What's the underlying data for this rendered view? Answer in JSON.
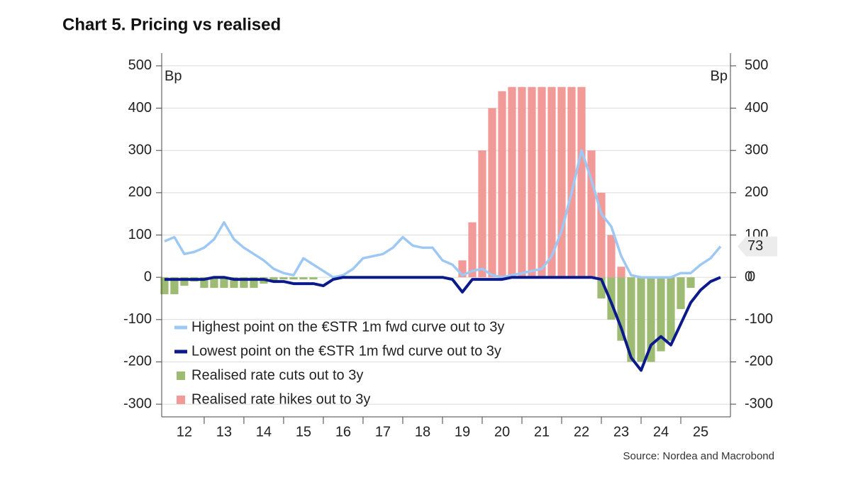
{
  "chart_data": {
    "type": "line",
    "title": "Chart 5. Pricing vs realised",
    "source": "Source: Nordea and Macrobond",
    "y_unit": "Bp",
    "x": [
      2012.0,
      2012.25,
      2012.5,
      2012.75,
      2013.0,
      2013.25,
      2013.5,
      2013.75,
      2014.0,
      2014.25,
      2014.5,
      2014.75,
      2015.0,
      2015.25,
      2015.5,
      2015.75,
      2016.0,
      2016.25,
      2016.5,
      2016.75,
      2017.0,
      2017.25,
      2017.5,
      2017.75,
      2018.0,
      2018.25,
      2018.5,
      2018.75,
      2019.0,
      2019.25,
      2019.5,
      2019.75,
      2020.0,
      2020.25,
      2020.5,
      2020.75,
      2021.0,
      2021.25,
      2021.5,
      2021.75,
      2022.0,
      2022.25,
      2022.5,
      2022.75,
      2023.0,
      2023.25,
      2023.5,
      2023.75,
      2024.0,
      2024.25,
      2024.5,
      2024.75,
      2025.0,
      2025.25,
      2025.5,
      2025.75,
      2026.0
    ],
    "series": [
      {
        "name": "Highest point on the €STR 1m fwd curve out to 3y",
        "kind": "line",
        "color": "#9ec8f4",
        "values": [
          85,
          95,
          55,
          60,
          70,
          90,
          130,
          90,
          70,
          55,
          40,
          20,
          10,
          5,
          45,
          30,
          15,
          0,
          5,
          20,
          45,
          50,
          55,
          70,
          95,
          75,
          70,
          70,
          40,
          30,
          5,
          15,
          20,
          5,
          0,
          5,
          10,
          15,
          20,
          50,
          110,
          200,
          300,
          230,
          150,
          120,
          50,
          5,
          0,
          0,
          0,
          0,
          10,
          10,
          30,
          45,
          73
        ]
      },
      {
        "name": "Lowest point on the €STR 1m fwd curve out to 3y",
        "kind": "line",
        "color": "#0a1a8a",
        "values": [
          -5,
          -5,
          -5,
          -5,
          -5,
          0,
          0,
          -5,
          -5,
          -5,
          -5,
          -10,
          -10,
          -15,
          -15,
          -15,
          -20,
          -5,
          0,
          0,
          0,
          0,
          0,
          0,
          0,
          0,
          0,
          0,
          0,
          -5,
          -35,
          -5,
          -5,
          -5,
          -5,
          0,
          0,
          0,
          0,
          0,
          0,
          0,
          0,
          0,
          -5,
          -60,
          -120,
          -190,
          -220,
          -160,
          -140,
          -160,
          -110,
          -60,
          -30,
          -10,
          0
        ]
      },
      {
        "name": "Realised rate cuts out to 3y",
        "kind": "bar",
        "color": "#9dbb72",
        "values": [
          -40,
          -40,
          -20,
          -10,
          -25,
          -25,
          -25,
          -25,
          -25,
          -25,
          -15,
          -10,
          -5,
          -5,
          -5,
          -5,
          0,
          0,
          0,
          0,
          0,
          0,
          0,
          0,
          0,
          0,
          0,
          0,
          0,
          0,
          0,
          0,
          0,
          0,
          0,
          0,
          0,
          0,
          0,
          0,
          0,
          0,
          0,
          0,
          -50,
          -100,
          -150,
          -200,
          -200,
          -200,
          -175,
          -150,
          -75,
          -25,
          0,
          0,
          0
        ]
      },
      {
        "name": "Realised rate hikes out to 3y",
        "kind": "bar",
        "color": "#f19a98",
        "values": [
          0,
          0,
          0,
          0,
          0,
          0,
          0,
          0,
          0,
          0,
          0,
          0,
          0,
          0,
          0,
          0,
          0,
          0,
          0,
          0,
          0,
          0,
          0,
          0,
          0,
          0,
          0,
          0,
          0,
          0,
          40,
          130,
          300,
          400,
          440,
          450,
          450,
          450,
          450,
          450,
          450,
          450,
          450,
          300,
          200,
          100,
          25,
          0,
          0,
          0,
          0,
          0,
          0,
          0,
          0,
          0,
          0
        ]
      }
    ],
    "xlim": [
      2011.93,
      2026.25
    ],
    "xticks": [
      {
        "value": 2012.5,
        "label": "12"
      },
      {
        "value": 2013.5,
        "label": "13"
      },
      {
        "value": 2014.5,
        "label": "14"
      },
      {
        "value": 2015.5,
        "label": "15"
      },
      {
        "value": 2016.5,
        "label": "16"
      },
      {
        "value": 2017.5,
        "label": "17"
      },
      {
        "value": 2018.5,
        "label": "18"
      },
      {
        "value": 2019.5,
        "label": "19"
      },
      {
        "value": 2020.5,
        "label": "20"
      },
      {
        "value": 2021.5,
        "label": "21"
      },
      {
        "value": 2022.5,
        "label": "22"
      },
      {
        "value": 2023.5,
        "label": "23"
      },
      {
        "value": 2024.5,
        "label": "24"
      },
      {
        "value": 2025.5,
        "label": "25"
      }
    ],
    "ylim": [
      -330,
      530
    ],
    "yticks": [
      -300,
      -200,
      -100,
      0,
      100,
      200,
      300,
      400,
      500
    ],
    "y2lim": [
      -330,
      530
    ],
    "y2ticks": [
      -300,
      -200,
      -100,
      0,
      100,
      200,
      300,
      400,
      500
    ],
    "grid": true,
    "legend": "lower left"
  }
}
